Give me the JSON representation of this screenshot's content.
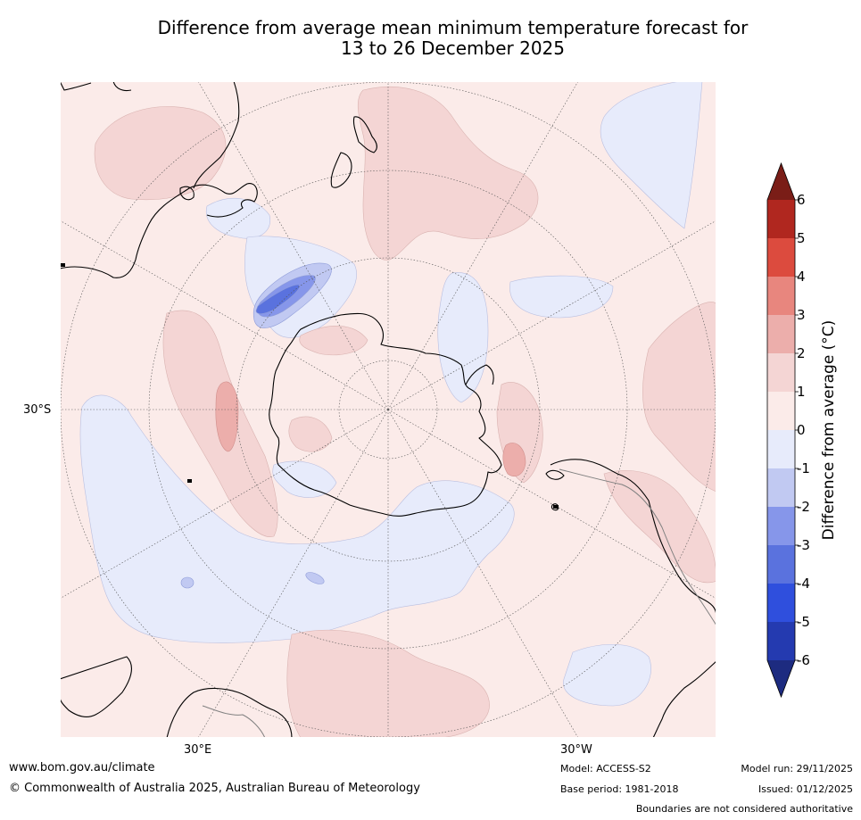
{
  "title": {
    "line1": "Difference from average mean minimum temperature forecast for",
    "line2": "13 to 26 December 2025"
  },
  "map": {
    "projection": "south-polar-stereographic",
    "grid_labels": {
      "lat": "30°S",
      "lon_east": "30°E",
      "lon_west": "30°W"
    },
    "colors": {
      "ocean_base": "#fbebe9",
      "warm_0_1": "#fbebe9",
      "warm_1_2": "#f4d5d4",
      "warm_2_3": "#ecaeab",
      "cool_0_1": "#e7ebfb",
      "cool_1_2": "#c1c9f2",
      "cool_2_3": "#8696ea",
      "cool_3_4": "#5a72de",
      "coast": "#000000",
      "boundary": "#808080"
    }
  },
  "colorbar": {
    "label": "Difference from average (°C)",
    "ticks": [
      "6",
      "5",
      "4",
      "3",
      "2",
      "1",
      "0",
      "-1",
      "-2",
      "-3",
      "-4",
      "-5",
      "-6"
    ],
    "bins": [
      {
        "range": "5 to 6",
        "color": "#b0271f"
      },
      {
        "range": "4 to 5",
        "color": "#dc4b3e"
      },
      {
        "range": "3 to 4",
        "color": "#e8867e"
      },
      {
        "range": "2 to 3",
        "color": "#ecaeab"
      },
      {
        "range": "1 to 2",
        "color": "#f4d5d4"
      },
      {
        "range": "0 to 1",
        "color": "#fbebe9"
      },
      {
        "range": "-1 to 0",
        "color": "#e7ebfb"
      },
      {
        "range": "-2 to -1",
        "color": "#c1c9f2"
      },
      {
        "range": "-3 to -2",
        "color": "#8696ea"
      },
      {
        "range": "-4 to -3",
        "color": "#5a72de"
      },
      {
        "range": "-5 to -4",
        "color": "#2f4fdd"
      },
      {
        "range": "-6 to -5",
        "color": "#243ab0"
      }
    ],
    "extend_max_color": "#7a1d17",
    "extend_min_color": "#1d2b80"
  },
  "footer": {
    "website": "www.bom.gov.au/climate",
    "copyright": "© Commonwealth of Australia 2025, Australian Bureau of Meteorology",
    "model": "Model: ACCESS-S2",
    "base_period": "Base period: 1981-2018",
    "model_run": "Model run: 29/11/2025",
    "issued": "Issued: 01/12/2025",
    "disclaimer": "Boundaries are not considered authoritative"
  }
}
